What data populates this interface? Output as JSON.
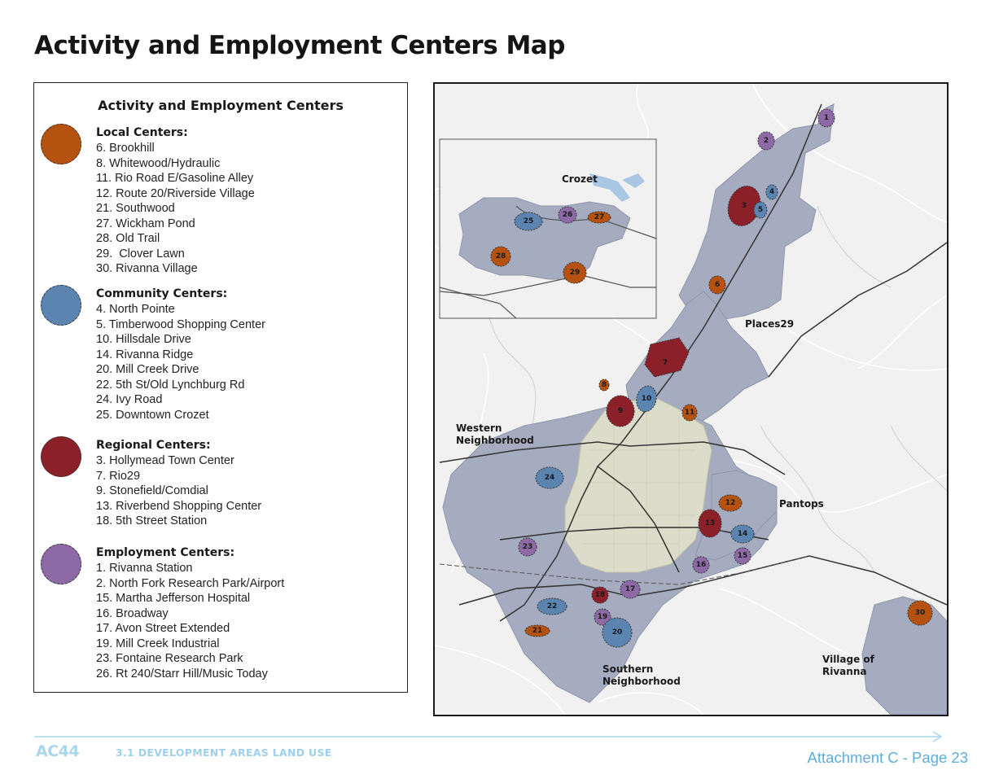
{
  "title": "Activity and Employment Centers Map",
  "legend": {
    "title": "Activity and Employment Centers",
    "groups": [
      {
        "heading": "Local Centers:",
        "color": "#b5520f",
        "items": [
          "6. Brookhill",
          "8. Whitewood/Hydraulic",
          "11. Rio Road E/Gasoline Alley",
          "12. Route 20/Riverside Village",
          "21. Southwood",
          "27. Wickham Pond",
          "28. Old Trail",
          "29.  Clover Lawn",
          "30. Rivanna Village"
        ]
      },
      {
        "heading": "Community Centers:",
        "color": "#5b84b1",
        "items": [
          "4. North Pointe",
          "5. Timberwood Shopping Center",
          "10. Hillsdale Drive",
          "14. Rivanna Ridge",
          "20. Mill Creek Drive",
          "22. 5th St/Old Lynchburg Rd",
          "24. Ivy Road",
          "25. Downtown Crozet"
        ]
      },
      {
        "heading": "Regional Centers:",
        "color": "#8c2028",
        "items": [
          "3. Hollymead Town Center",
          "7. Rio29",
          "9. Stonefield/Comdial",
          "13. Riverbend Shopping Center",
          "18. 5th Street Station"
        ]
      },
      {
        "heading": "Employment Centers:",
        "color": "#8d6aa6",
        "items": [
          "1. Rivanna Station",
          "2. North Fork Research Park/Airport",
          "15. Martha Jefferson Hospital",
          "16. Broadway",
          "17. Avon Street Extended",
          "19. Mill Creek Industrial",
          "23. Fontaine Research Park",
          "26. Rt 240/Starr Hill/Music Today"
        ]
      }
    ]
  },
  "map": {
    "labels": {
      "crozet": "Crozet",
      "places29": "Places29",
      "western_1": "Western",
      "western_2": "Neighborhood",
      "pantops": "Pantops",
      "southern_1": "Southern",
      "southern_2": "Neighborhood",
      "village_1": "Village of",
      "village_2": "Rivanna"
    },
    "centers": [
      {
        "id": "1",
        "type": "employment"
      },
      {
        "id": "2",
        "type": "employment"
      },
      {
        "id": "3",
        "type": "regional"
      },
      {
        "id": "4",
        "type": "community"
      },
      {
        "id": "5",
        "type": "community"
      },
      {
        "id": "6",
        "type": "local"
      },
      {
        "id": "7",
        "type": "regional"
      },
      {
        "id": "8",
        "type": "local"
      },
      {
        "id": "9",
        "type": "regional"
      },
      {
        "id": "10",
        "type": "community"
      },
      {
        "id": "11",
        "type": "local"
      },
      {
        "id": "12",
        "type": "local"
      },
      {
        "id": "13",
        "type": "regional"
      },
      {
        "id": "14",
        "type": "community"
      },
      {
        "id": "15",
        "type": "employment"
      },
      {
        "id": "16",
        "type": "employment"
      },
      {
        "id": "17",
        "type": "employment"
      },
      {
        "id": "18",
        "type": "regional"
      },
      {
        "id": "19",
        "type": "employment"
      },
      {
        "id": "20",
        "type": "community"
      },
      {
        "id": "21",
        "type": "local"
      },
      {
        "id": "22",
        "type": "community"
      },
      {
        "id": "23",
        "type": "employment"
      },
      {
        "id": "24",
        "type": "community"
      },
      {
        "id": "25",
        "type": "community"
      },
      {
        "id": "26",
        "type": "employment"
      },
      {
        "id": "27",
        "type": "local"
      },
      {
        "id": "28",
        "type": "local"
      },
      {
        "id": "29",
        "type": "local"
      },
      {
        "id": "30",
        "type": "local"
      }
    ]
  },
  "footer": {
    "brand": "AC44",
    "section": "3.1 DEVELOPMENT AREAS LAND USE",
    "page": "Attachment C - Page 23"
  }
}
